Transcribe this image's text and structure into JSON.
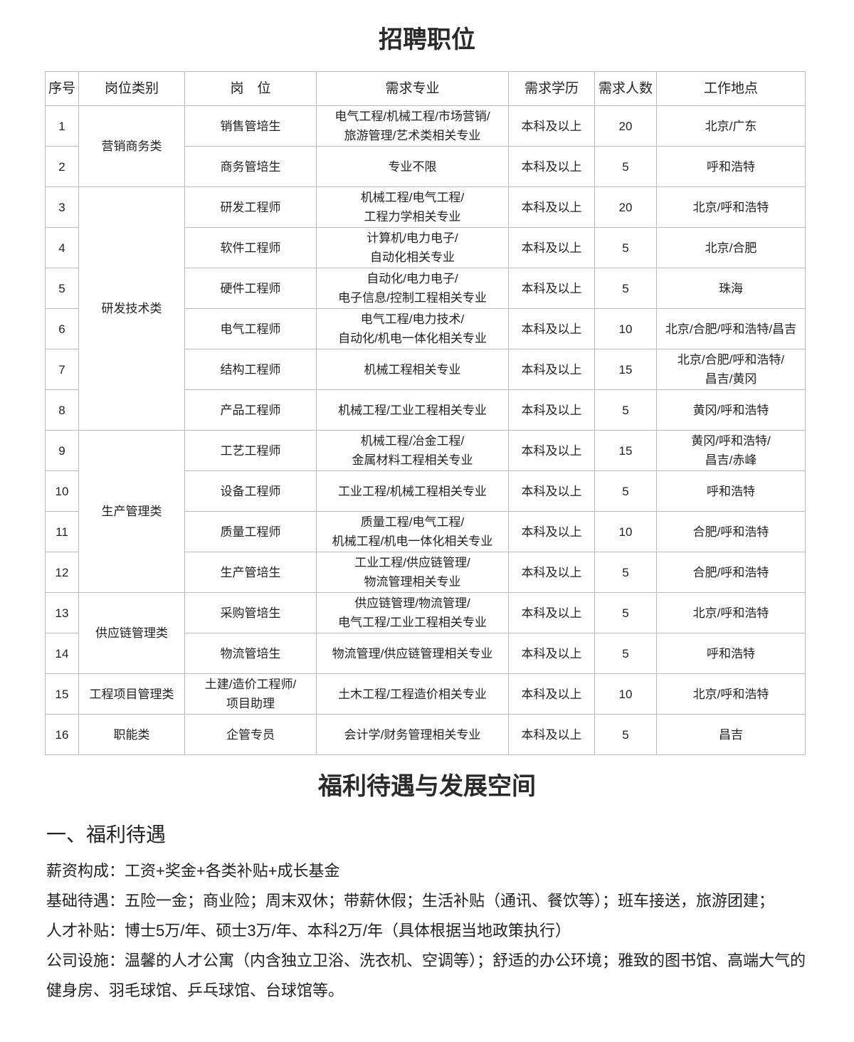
{
  "title": "招聘职位",
  "table": {
    "headers": [
      "序号",
      "岗位类别",
      "岗　位",
      "需求专业",
      "需求学历",
      "需求人数",
      "工作地点"
    ],
    "categories": [
      {
        "name": "营销商务类",
        "rows": 2
      },
      {
        "name": "研发技术类",
        "rows": 6
      },
      {
        "name": "生产管理类",
        "rows": 4
      },
      {
        "name": "供应链管理类",
        "rows": 2
      },
      {
        "name": "工程项目管理类",
        "rows": 1
      },
      {
        "name": "职能类",
        "rows": 1
      }
    ],
    "rows": [
      {
        "no": "1",
        "position": "销售管培生",
        "major": "电气工程/机械工程/市场营销/\n旅游管理/艺术类相关专业",
        "education": "本科及以上",
        "count": "20",
        "location": "北京/广东"
      },
      {
        "no": "2",
        "position": "商务管培生",
        "major": "专业不限",
        "education": "本科及以上",
        "count": "5",
        "location": "呼和浩特"
      },
      {
        "no": "3",
        "position": "研发工程师",
        "major": "机械工程/电气工程/\n工程力学相关专业",
        "education": "本科及以上",
        "count": "20",
        "location": "北京/呼和浩特"
      },
      {
        "no": "4",
        "position": "软件工程师",
        "major": "计算机/电力电子/\n自动化相关专业",
        "education": "本科及以上",
        "count": "5",
        "location": "北京/合肥"
      },
      {
        "no": "5",
        "position": "硬件工程师",
        "major": "自动化/电力电子/\n电子信息/控制工程相关专业",
        "education": "本科及以上",
        "count": "5",
        "location": "珠海"
      },
      {
        "no": "6",
        "position": "电气工程师",
        "major": "电气工程/电力技术/\n自动化/机电一体化相关专业",
        "education": "本科及以上",
        "count": "10",
        "location": "北京/合肥/呼和浩特/昌吉"
      },
      {
        "no": "7",
        "position": "结构工程师",
        "major": "机械工程相关专业",
        "education": "本科及以上",
        "count": "15",
        "location": "北京/合肥/呼和浩特/\n昌吉/黄冈"
      },
      {
        "no": "8",
        "position": "产品工程师",
        "major": "机械工程/工业工程相关专业",
        "education": "本科及以上",
        "count": "5",
        "location": "黄冈/呼和浩特"
      },
      {
        "no": "9",
        "position": "工艺工程师",
        "major": "机械工程/冶金工程/\n金属材料工程相关专业",
        "education": "本科及以上",
        "count": "15",
        "location": "黄冈/呼和浩特/\n昌吉/赤峰"
      },
      {
        "no": "10",
        "position": "设备工程师",
        "major": "工业工程/机械工程相关专业",
        "education": "本科及以上",
        "count": "5",
        "location": "呼和浩特"
      },
      {
        "no": "11",
        "position": "质量工程师",
        "major": "质量工程/电气工程/\n机械工程/机电一体化相关专业",
        "education": "本科及以上",
        "count": "10",
        "location": "合肥/呼和浩特"
      },
      {
        "no": "12",
        "position": "生产管培生",
        "major": "工业工程/供应链管理/\n物流管理相关专业",
        "education": "本科及以上",
        "count": "5",
        "location": "合肥/呼和浩特"
      },
      {
        "no": "13",
        "position": "采购管培生",
        "major": "供应链管理/物流管理/\n电气工程/工业工程相关专业",
        "education": "本科及以上",
        "count": "5",
        "location": "北京/呼和浩特"
      },
      {
        "no": "14",
        "position": "物流管培生",
        "major": "物流管理/供应链管理相关专业",
        "education": "本科及以上",
        "count": "5",
        "location": "呼和浩特"
      },
      {
        "no": "15",
        "position": "土建/造价工程师/\n项目助理",
        "major": "土木工程/工程造价相关专业",
        "education": "本科及以上",
        "count": "10",
        "location": "北京/呼和浩特"
      },
      {
        "no": "16",
        "position": "企管专员",
        "major": "会计学/财务管理相关专业",
        "education": "本科及以上",
        "count": "5",
        "location": "昌吉"
      }
    ]
  },
  "benefits": {
    "title": "福利待遇与发展空间",
    "subtitle": "一、福利待遇",
    "paragraphs": [
      "薪资构成：工资+奖金+各类补贴+成长基金",
      "基础待遇：五险一金；商业险；周末双休；带薪休假；生活补贴（通讯、餐饮等）；班车接送，旅游团建；",
      "人才补贴：博士5万/年、硕士3万/年、本科2万/年（具体根据当地政策执行）",
      "公司设施：温馨的人才公寓（内含独立卫浴、洗衣机、空调等）；舒适的办公环境；雅致的图书馆、高端大气的健身房、羽毛球馆、乒乓球馆、台球馆等。"
    ]
  }
}
